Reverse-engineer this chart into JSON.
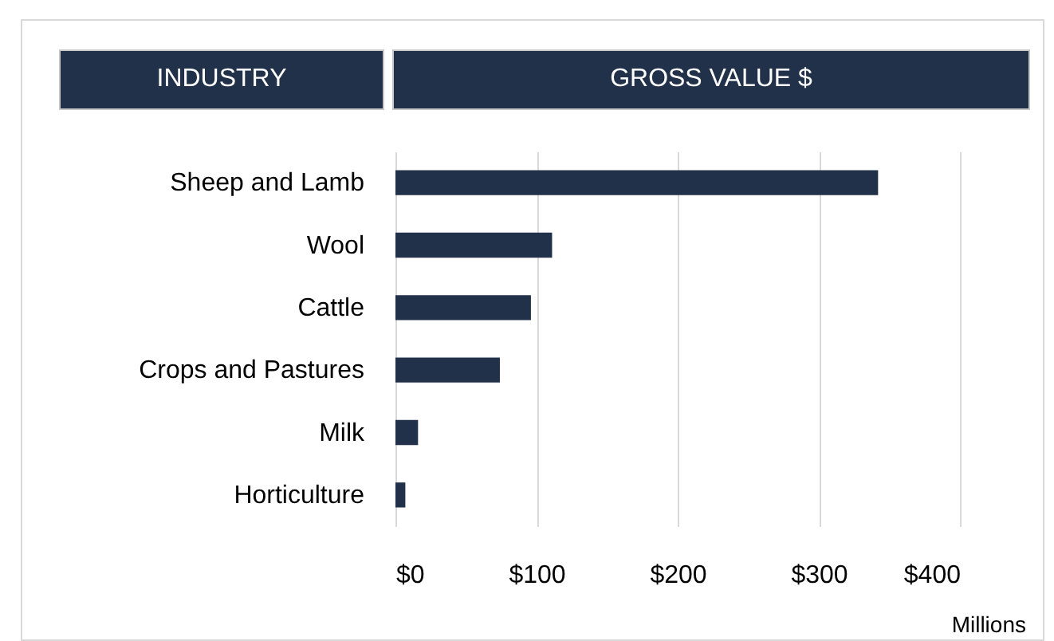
{
  "chart_data": {
    "type": "bar",
    "orientation": "horizontal",
    "title": "GROSS VALUE $",
    "ylabel": "INDUSTRY",
    "xlabel": "Millions",
    "categories": [
      "Sheep and Lamb",
      "Wool",
      "Cattle",
      "Crops and Pastures",
      "Milk",
      "Horticulture"
    ],
    "values": [
      342,
      111,
      96,
      74,
      16,
      7
    ],
    "color": "#22314a",
    "xlim": [
      0,
      400
    ],
    "xticks": [
      {
        "value": 0,
        "label": "$0"
      },
      {
        "value": 100,
        "label": "$100"
      },
      {
        "value": 200,
        "label": "$200"
      },
      {
        "value": 300,
        "label": "$300"
      },
      {
        "value": 400,
        "label": "$400"
      }
    ],
    "grid": "x"
  }
}
